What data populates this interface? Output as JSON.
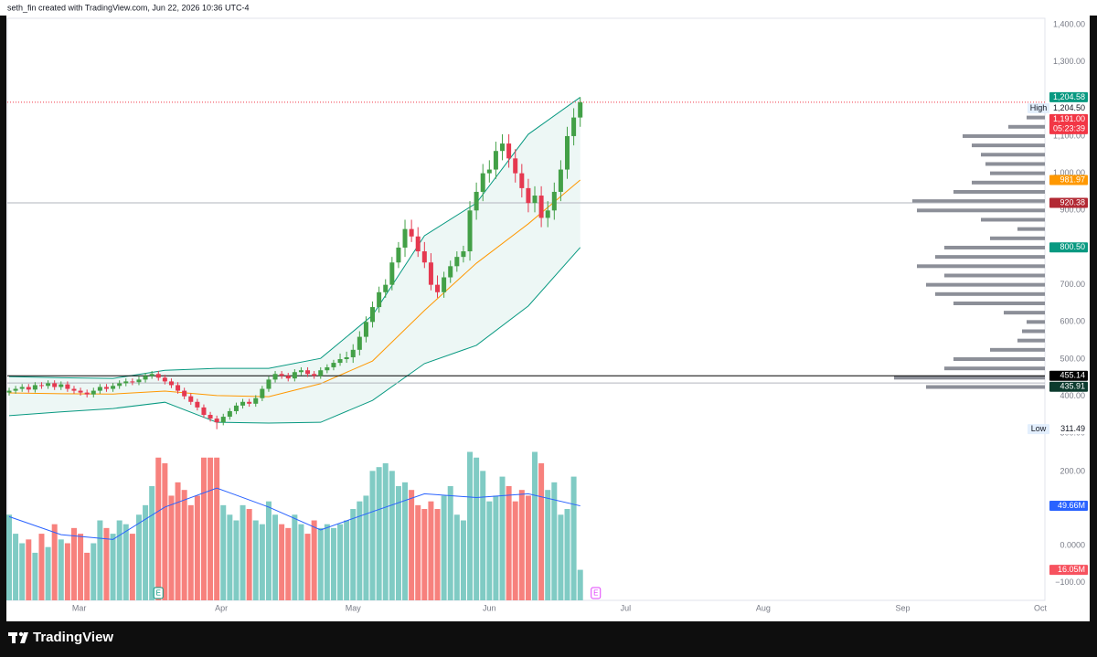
{
  "chart_data": {
    "type": "candlestick",
    "header": "seth_fin created with TradingView.com, Jun 22, 2026 10:36 UTC-4",
    "brand": "TradingView",
    "xlim": [
      -0.28,
      159.6
    ],
    "xticks": [
      {
        "value": 10.8,
        "label": "Mar"
      },
      {
        "value": 32.7,
        "label": "Apr"
      },
      {
        "value": 53,
        "label": "May"
      },
      {
        "value": 74,
        "label": "Jun"
      },
      {
        "value": 95,
        "label": "Jul"
      },
      {
        "value": 116.2,
        "label": "Aug"
      },
      {
        "value": 137.7,
        "label": "Sep"
      },
      {
        "value": 158.9,
        "label": "Oct"
      }
    ],
    "ylim": [
      -149,
      1417
    ],
    "yticks": [
      {
        "value": 1400,
        "label": "1,400.00"
      },
      {
        "value": 1300,
        "label": "1,300.00"
      },
      {
        "value": 1100,
        "label": "1,100.00"
      },
      {
        "value": 1000,
        "label": "1,000.00"
      },
      {
        "value": 900,
        "label": "900.00"
      },
      {
        "value": 700,
        "label": "700.00"
      },
      {
        "value": 600,
        "label": "600.00"
      },
      {
        "value": 500,
        "label": "500.00"
      },
      {
        "value": 400,
        "label": "400.00"
      },
      {
        "value": 300,
        "label": "300.00"
      }
    ],
    "up_color": "#43a047",
    "down_color": "#e53950",
    "open": [
      410,
      415,
      420,
      425,
      418,
      430,
      428,
      435,
      425,
      432,
      420,
      415,
      410,
      405,
      415,
      425,
      420,
      428,
      435,
      440,
      438,
      445,
      455,
      460,
      450,
      440,
      430,
      415,
      400,
      385,
      370,
      350,
      340,
      330,
      345,
      360,
      375,
      385,
      380,
      395,
      420,
      445,
      460,
      455,
      448,
      465,
      470,
      460,
      455,
      470,
      478,
      490,
      500,
      505,
      525,
      560,
      600,
      640,
      680,
      700,
      760,
      800,
      850,
      830,
      790,
      760,
      700,
      680,
      720,
      750,
      775,
      790,
      900,
      950,
      1000,
      1010,
      1060,
      1080,
      1040,
      1000,
      960,
      920,
      940,
      880,
      900,
      950,
      1010,
      1100,
      1150
    ],
    "high": [
      423,
      428,
      433,
      433,
      438,
      438,
      443,
      443,
      440,
      440,
      428,
      423,
      418,
      423,
      433,
      433,
      436,
      443,
      448,
      448,
      453,
      463,
      468,
      468,
      458,
      448,
      438,
      423,
      408,
      393,
      378,
      358,
      348,
      353,
      368,
      383,
      393,
      393,
      403,
      428,
      453,
      468,
      468,
      463,
      473,
      478,
      478,
      468,
      478,
      486,
      498,
      515,
      520,
      540,
      575,
      615,
      655,
      695,
      715,
      775,
      815,
      875,
      875,
      855,
      815,
      785,
      725,
      735,
      765,
      790,
      805,
      925,
      975,
      1025,
      1035,
      1085,
      1105,
      1105,
      1065,
      1025,
      985,
      965,
      965,
      925,
      975,
      1035,
      1125,
      1175,
      1204.5
    ],
    "low": [
      402,
      407,
      412,
      410,
      410,
      420,
      420,
      417,
      417,
      412,
      407,
      402,
      397,
      397,
      407,
      412,
      412,
      420,
      427,
      430,
      430,
      437,
      447,
      442,
      432,
      422,
      407,
      392,
      377,
      362,
      342,
      332,
      311.49,
      322,
      337,
      352,
      367,
      372,
      372,
      387,
      412,
      437,
      447,
      440,
      440,
      457,
      452,
      447,
      447,
      462,
      470,
      482,
      490,
      490,
      510,
      545,
      585,
      625,
      665,
      685,
      745,
      775,
      815,
      775,
      745,
      685,
      665,
      665,
      705,
      735,
      760,
      765,
      875,
      925,
      975,
      985,
      1035,
      1015,
      975,
      935,
      895,
      895,
      855,
      855,
      875,
      925,
      985,
      1075,
      1125
    ],
    "close": [
      415,
      420,
      425,
      418,
      430,
      428,
      435,
      425,
      432,
      420,
      415,
      410,
      405,
      415,
      425,
      420,
      428,
      435,
      440,
      438,
      445,
      455,
      460,
      450,
      440,
      430,
      415,
      400,
      385,
      370,
      350,
      340,
      330,
      345,
      360,
      375,
      385,
      380,
      395,
      420,
      445,
      460,
      455,
      448,
      465,
      470,
      460,
      455,
      470,
      478,
      490,
      500,
      505,
      525,
      560,
      600,
      640,
      680,
      700,
      760,
      800,
      850,
      830,
      790,
      760,
      700,
      680,
      720,
      750,
      775,
      790,
      900,
      950,
      1000,
      1010,
      1060,
      1080,
      1040,
      1000,
      960,
      920,
      940,
      880,
      900,
      950,
      1010,
      1100,
      1150,
      1191
    ],
    "bands": {
      "x": [
        0,
        8,
        16,
        24,
        32,
        40,
        48,
        56,
        64,
        72,
        80,
        88
      ],
      "upper": [
        453,
        450,
        448,
        470,
        475,
        475,
        502,
        618,
        832,
        920,
        1105,
        1204.58
      ],
      "middle": [
        409,
        407,
        406,
        414,
        402,
        399,
        434,
        495,
        631,
        758,
        864,
        981.97
      ],
      "lower": [
        348,
        358,
        367,
        384,
        330,
        328,
        330,
        389,
        488,
        537,
        643,
        800.5
      ],
      "line_color": "#089981",
      "middle_color": "#ff9800",
      "fill": "#e6f4f1"
    },
    "volume": {
      "ylim": [
        0,
        305.8
      ],
      "up_color": "#80cbc4",
      "down_color": "#f7817d",
      "values": [
        45,
        35,
        30,
        32,
        25,
        35,
        28,
        40,
        32,
        30,
        38,
        35,
        25,
        30,
        42,
        38,
        35,
        42,
        40,
        35,
        45,
        50,
        60,
        75,
        72,
        55,
        62,
        58,
        50,
        55,
        75,
        75,
        75,
        50,
        45,
        42,
        50,
        48,
        42,
        40,
        52,
        45,
        40,
        38,
        45,
        40,
        35,
        42,
        38,
        40,
        38,
        40,
        42,
        48,
        52,
        55,
        68,
        70,
        72,
        68,
        60,
        62,
        58,
        50,
        48,
        52,
        48,
        55,
        60,
        45,
        42,
        78,
        75,
        68,
        52,
        55,
        65,
        60,
        52,
        58,
        55,
        78,
        72,
        58,
        62,
        45,
        48,
        65,
        16.05
      ],
      "ma": {
        "x": [
          0,
          8,
          16,
          24,
          32,
          40,
          48,
          56,
          64,
          72,
          80,
          88
        ],
        "values": [
          44,
          34.5,
          32,
          49,
          59,
          49,
          37,
          46.6,
          56,
          54,
          56,
          49.66
        ],
        "color": "#2962ff"
      },
      "axis_lim": [
        -148,
        1425
      ],
      "axis_ticks": [
        {
          "value": 200,
          "label": "200.00"
        },
        {
          "value": 0,
          "label": "0.0000"
        },
        {
          "value": -100,
          "label": "−100.00"
        }
      ],
      "labels": [
        {
          "value": 49.66,
          "label": "49.66M",
          "color": "#2962ff"
        },
        {
          "value": 16.05,
          "label": "16.05M",
          "color": "#f7525f"
        }
      ]
    },
    "profile": {
      "color": "#787b86",
      "prices": [
        425,
        450,
        475,
        500,
        525,
        550,
        575,
        600,
        625,
        650,
        675,
        700,
        725,
        750,
        775,
        800,
        825,
        850,
        875,
        900,
        925,
        950,
        975,
        1000,
        1025,
        1050,
        1075,
        1100,
        1125,
        1150
      ],
      "values": [
        130,
        165,
        110,
        100,
        60,
        30,
        25,
        20,
        45,
        100,
        120,
        130,
        110,
        140,
        120,
        110,
        60,
        30,
        70,
        140,
        145,
        100,
        80,
        60,
        65,
        70,
        80,
        90,
        40,
        20
      ]
    },
    "price_lines": [
      {
        "value": 1191,
        "color": "#f23645",
        "style": "dotted"
      },
      {
        "value": 920.38,
        "color": "#b2b5be",
        "style": "solid"
      },
      {
        "value": 455.14,
        "color": "#000000",
        "style": "solid"
      },
      {
        "value": 435.91,
        "color": "#b2b5be",
        "style": "solid"
      }
    ],
    "price_labels": [
      {
        "value": 1204.58,
        "label": "1,204.58",
        "color": "#089981"
      },
      {
        "value": 1204.5,
        "label": "1,204.50",
        "color": "#ffffff",
        "tag": "High"
      },
      {
        "value": 1191,
        "label": "1,191.00",
        "color": "#f23645",
        "sub": "05:23:39"
      },
      {
        "value": 981.97,
        "label": "981.97",
        "color": "#ff9800"
      },
      {
        "value": 920.38,
        "label": "920.38",
        "color": "#b22833"
      },
      {
        "value": 800.5,
        "label": "800.50",
        "color": "#089981"
      },
      {
        "value": 455.14,
        "label": "455.14",
        "color": "#000000"
      },
      {
        "value": 435.91,
        "label": "435.91",
        "color": "#0c3b2e"
      },
      {
        "value": 311.49,
        "label": "311.49",
        "color": "#ffffff",
        "tag": "Low"
      }
    ],
    "events": [
      {
        "x": 23,
        "label": "E",
        "color": "#089981"
      },
      {
        "x": 90.4,
        "label": "E",
        "color": "#e040fb"
      }
    ]
  }
}
